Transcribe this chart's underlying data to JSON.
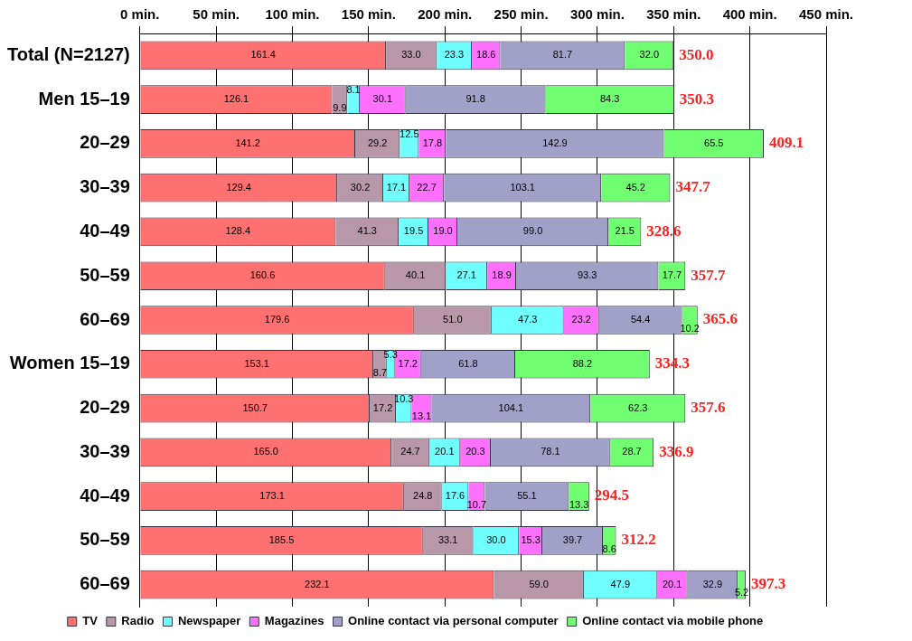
{
  "chart_data": {
    "type": "bar",
    "orientation": "horizontal",
    "stacked": true,
    "legend": "bottom",
    "grid": "x",
    "categories": [
      "Total (N=2127)",
      "Men 15–19",
      "20–29",
      "30–39",
      "40–49",
      "50–59",
      "60–69",
      "Women 15–19",
      "20–29",
      "30–39",
      "40–49",
      "50–59",
      "60–69"
    ],
    "xlim": [
      0,
      450
    ],
    "xticks": [
      {
        "value": 0,
        "label": "0 min."
      },
      {
        "value": 50,
        "label": "50 min."
      },
      {
        "value": 100,
        "label": "100 min."
      },
      {
        "value": 150,
        "label": "150 min."
      },
      {
        "value": 200,
        "label": "200 min."
      },
      {
        "value": 250,
        "label": "250 min."
      },
      {
        "value": 300,
        "label": "300 min."
      },
      {
        "value": 350,
        "label": "350 min."
      },
      {
        "value": 400,
        "label": "400 min."
      },
      {
        "value": 450,
        "label": "450 min."
      }
    ],
    "series": [
      {
        "name": "TV",
        "color": "#ff7070",
        "values": [
          161.4,
          126.1,
          141.2,
          129.4,
          128.4,
          160.6,
          179.6,
          153.1,
          150.7,
          165.0,
          173.1,
          185.5,
          232.1
        ],
        "value_labels": [
          "161.4",
          "126.1",
          "141.2",
          "129.4",
          "128.4",
          "160.6",
          "179.6",
          "153.1",
          "150.7",
          "165.0",
          "173.1",
          "185.5",
          "232.1"
        ]
      },
      {
        "name": "Radio",
        "color": "#b898a8",
        "values": [
          33.0,
          9.9,
          29.2,
          30.2,
          41.3,
          40.1,
          51.0,
          8.7,
          17.2,
          24.7,
          24.8,
          33.1,
          59.0
        ],
        "value_labels": [
          "33.0",
          "9.9",
          "29.2",
          "30.2",
          "41.3",
          "40.1",
          "51.0",
          "8.7",
          "17.2",
          "24.7",
          "24.8",
          "33.1",
          "59.0"
        ]
      },
      {
        "name": "Newspaper",
        "color": "#70ffff",
        "values": [
          23.3,
          8.1,
          12.5,
          17.1,
          19.5,
          27.1,
          47.3,
          5.3,
          10.3,
          20.1,
          17.6,
          30.0,
          47.9
        ],
        "value_labels": [
          "23.3",
          "8.1",
          "12.5",
          "17.1",
          "19.5",
          "27.1",
          "47.3",
          "5.3",
          "10.3",
          "20.1",
          "17.6",
          "30.0",
          "47.9"
        ]
      },
      {
        "name": "Magazines",
        "color": "#ff70ff",
        "values": [
          18.6,
          30.1,
          17.8,
          22.7,
          19.0,
          18.9,
          23.2,
          17.2,
          13.1,
          20.3,
          10.7,
          15.3,
          20.1
        ],
        "value_labels": [
          "18.6",
          "30.1",
          "17.8",
          "22.7",
          "19.0",
          "18.9",
          "23.2",
          "17.2",
          "13.1",
          "20.3",
          "10.7",
          "15.3",
          "20.1"
        ]
      },
      {
        "name": "Online contact via personal computer",
        "color": "#a0a0c8",
        "values": [
          81.7,
          91.8,
          142.9,
          103.1,
          99.0,
          93.3,
          54.4,
          61.8,
          104.1,
          78.1,
          55.1,
          39.7,
          32.9
        ],
        "value_labels": [
          "81.7",
          "91.8",
          "142.9",
          "103.1",
          "99.0",
          "93.3",
          "54.4",
          "61.8",
          "104.1",
          "78.1",
          "55.1",
          "39.7",
          "32.9"
        ]
      },
      {
        "name": "Online contact via mobile phone",
        "color": "#70ff70",
        "values": [
          32.0,
          84.3,
          65.5,
          45.2,
          21.5,
          17.7,
          10.2,
          88.2,
          62.3,
          28.7,
          13.3,
          8.6,
          5.2
        ],
        "value_labels": [
          "32.0",
          "84.3",
          "65.5",
          "45.2",
          "21.5",
          "17.7",
          "10.2",
          "88.2",
          "62.3",
          "28.7",
          "13.3",
          "8.6",
          "5.2"
        ]
      }
    ],
    "totals": [
      "350.0",
      "350.3",
      "409.1",
      "347.7",
      "328.6",
      "357.7",
      "365.6",
      "334.3",
      "357.6",
      "336.9",
      "294.5",
      "312.2",
      "397.3"
    ]
  }
}
